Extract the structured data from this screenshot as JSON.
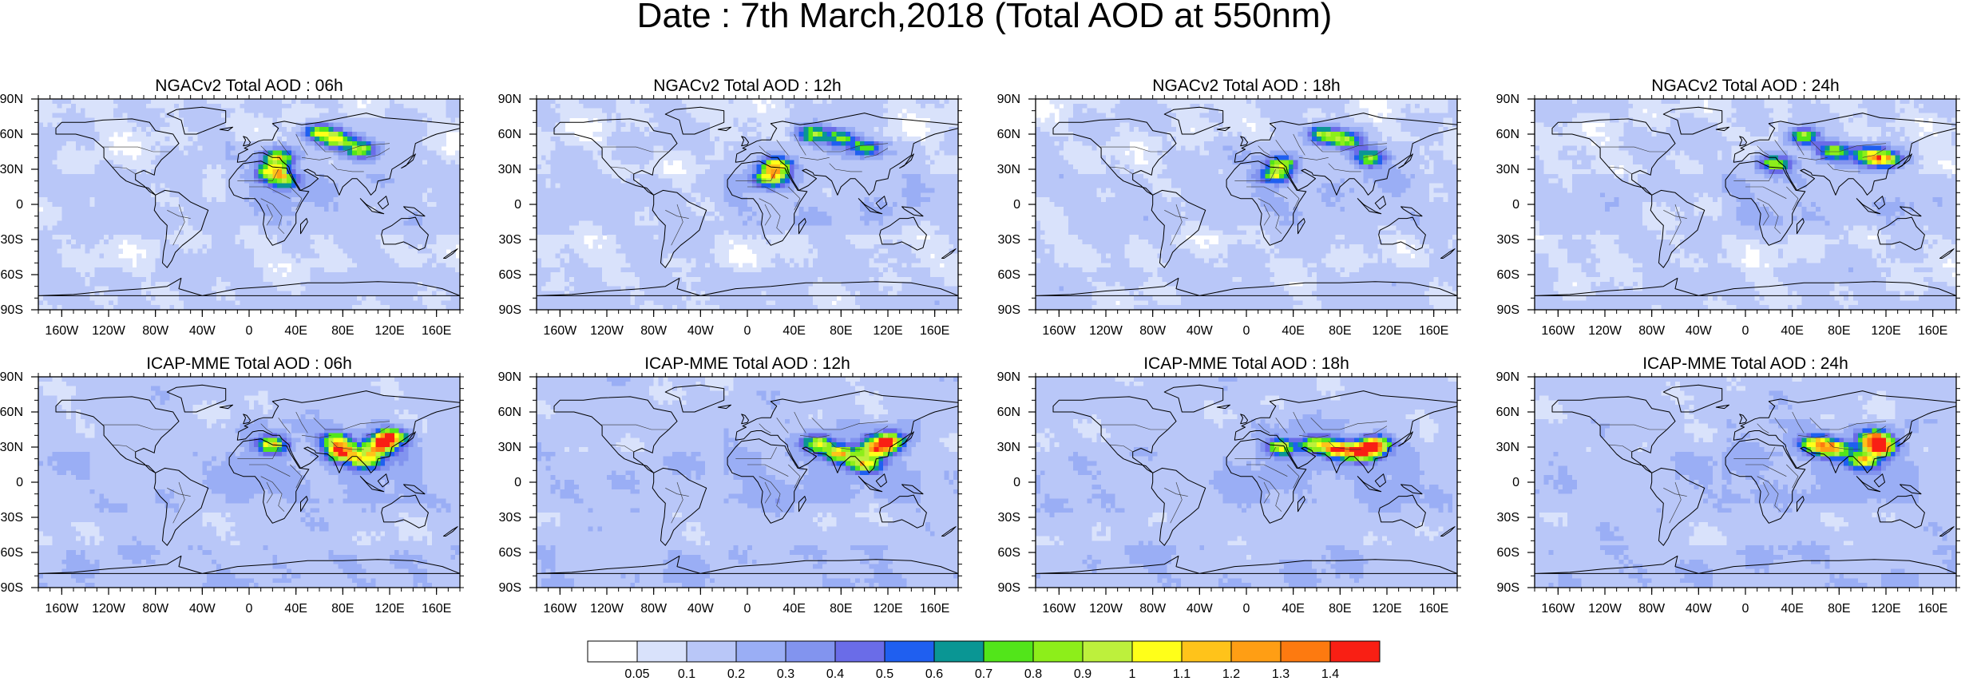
{
  "figure_title": "Date : 7th March,2018 (Total AOD at 550nm)",
  "chart_data": {
    "type": "heatmap",
    "panels": [
      {
        "title": "NGACv2 Total AOD : 06h",
        "model": "NGACv2",
        "hour": "06h",
        "hotspots": [
          {
            "lon": 60,
            "lat": 62,
            "aod": 0.85
          },
          {
            "lon": 75,
            "lat": 55,
            "aod": 0.8
          },
          {
            "lon": 95,
            "lat": 47,
            "aod": 0.75
          },
          {
            "lon": 25,
            "lat": 40,
            "aod": 0.9
          },
          {
            "lon": 20,
            "lat": 28,
            "aod": 1.0
          },
          {
            "lon": 30,
            "lat": 20,
            "aod": 0.65
          }
        ]
      },
      {
        "title": "NGACv2 Total AOD : 12h",
        "model": "NGACv2",
        "hour": "12h",
        "hotspots": [
          {
            "lon": 55,
            "lat": 60,
            "aod": 0.75
          },
          {
            "lon": 80,
            "lat": 57,
            "aod": 0.7
          },
          {
            "lon": 100,
            "lat": 48,
            "aod": 0.65
          },
          {
            "lon": 25,
            "lat": 33,
            "aod": 1.0
          },
          {
            "lon": 20,
            "lat": 22,
            "aod": 0.9
          }
        ]
      },
      {
        "title": "NGACv2 Total AOD : 18h",
        "model": "NGACv2",
        "hour": "18h",
        "hotspots": [
          {
            "lon": 65,
            "lat": 60,
            "aod": 0.8
          },
          {
            "lon": 85,
            "lat": 55,
            "aod": 0.8
          },
          {
            "lon": 105,
            "lat": 40,
            "aod": 0.7
          },
          {
            "lon": 30,
            "lat": 35,
            "aod": 0.75
          },
          {
            "lon": 25,
            "lat": 25,
            "aod": 0.8
          }
        ]
      },
      {
        "title": "NGACv2 Total AOD : 24h",
        "model": "NGACv2",
        "hour": "24h",
        "hotspots": [
          {
            "lon": 50,
            "lat": 58,
            "aod": 0.8
          },
          {
            "lon": 75,
            "lat": 45,
            "aod": 0.7
          },
          {
            "lon": 105,
            "lat": 42,
            "aod": 0.75
          },
          {
            "lon": 120,
            "lat": 38,
            "aod": 0.9
          },
          {
            "lon": 25,
            "lat": 35,
            "aod": 0.8
          }
        ]
      },
      {
        "title": "ICAP-MME Total AOD : 06h",
        "model": "ICAP-MME",
        "hour": "06h",
        "hotspots": [
          {
            "lon": 120,
            "lat": 38,
            "aod": 1.3
          },
          {
            "lon": 110,
            "lat": 30,
            "aod": 1.0
          },
          {
            "lon": 80,
            "lat": 25,
            "aod": 1.1
          },
          {
            "lon": 75,
            "lat": 35,
            "aod": 0.9
          },
          {
            "lon": 20,
            "lat": 32,
            "aod": 0.9
          },
          {
            "lon": 100,
            "lat": 18,
            "aod": 0.85
          }
        ]
      },
      {
        "title": "ICAP-MME Total AOD : 12h",
        "model": "ICAP-MME",
        "hour": "12h",
        "hotspots": [
          {
            "lon": 120,
            "lat": 35,
            "aod": 1.2
          },
          {
            "lon": 110,
            "lat": 28,
            "aod": 1.0
          },
          {
            "lon": 80,
            "lat": 24,
            "aod": 0.95
          },
          {
            "lon": 60,
            "lat": 33,
            "aod": 0.8
          },
          {
            "lon": 100,
            "lat": 15,
            "aod": 0.85
          }
        ]
      },
      {
        "title": "ICAP-MME Total AOD : 18h",
        "model": "ICAP-MME",
        "hour": "18h",
        "hotspots": [
          {
            "lon": 110,
            "lat": 32,
            "aod": 1.2
          },
          {
            "lon": 100,
            "lat": 25,
            "aod": 1.05
          },
          {
            "lon": 80,
            "lat": 28,
            "aod": 1.1
          },
          {
            "lon": 60,
            "lat": 32,
            "aod": 0.85
          },
          {
            "lon": 30,
            "lat": 30,
            "aod": 0.8
          }
        ]
      },
      {
        "title": "ICAP-MME Total AOD : 24h",
        "model": "ICAP-MME",
        "hour": "24h",
        "hotspots": [
          {
            "lon": 115,
            "lat": 30,
            "aod": 1.35
          },
          {
            "lon": 110,
            "lat": 38,
            "aod": 1.0
          },
          {
            "lon": 75,
            "lat": 28,
            "aod": 1.0
          },
          {
            "lon": 60,
            "lat": 33,
            "aod": 0.85
          },
          {
            "lon": 100,
            "lat": 18,
            "aod": 0.9
          }
        ]
      }
    ],
    "x_ticks": [
      "160W",
      "120W",
      "80W",
      "40W",
      "0",
      "40E",
      "80E",
      "120E",
      "160E"
    ],
    "x_tick_lon": [
      -160,
      -120,
      -80,
      -40,
      0,
      40,
      80,
      120,
      160
    ],
    "y_ticks": [
      "90N",
      "60N",
      "30N",
      "0",
      "30S",
      "60S",
      "90S"
    ],
    "y_tick_lat": [
      90,
      60,
      30,
      0,
      -30,
      -60,
      -90
    ],
    "xlim": [
      -180,
      180
    ],
    "ylim": [
      -90,
      90
    ],
    "colorbar": {
      "labels": [
        "0.05",
        "0.1",
        "0.2",
        "0.3",
        "0.4",
        "0.5",
        "0.6",
        "0.7",
        "0.8",
        "0.9",
        "1",
        "1.1",
        "1.2",
        "1.3",
        "1.4"
      ],
      "thresholds": [
        0.05,
        0.1,
        0.2,
        0.3,
        0.4,
        0.5,
        0.6,
        0.7,
        0.8,
        0.9,
        1.0,
        1.1,
        1.2,
        1.3,
        1.4
      ],
      "colors": [
        "#ffffff",
        "#d9e2fb",
        "#b9c7f8",
        "#9aaef5",
        "#8294ef",
        "#6a6ce8",
        "#1f5ff0",
        "#0a9694",
        "#52e51a",
        "#8dee1a",
        "#bdf03c",
        "#ffff19",
        "#ffc31a",
        "#ff9e14",
        "#fd7a10",
        "#f91f14"
      ]
    }
  }
}
